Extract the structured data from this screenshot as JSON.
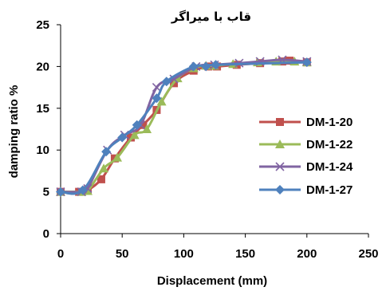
{
  "chart_data": {
    "type": "line",
    "title": "قاب با میراگر",
    "xlabel": "Displacement (mm)",
    "ylabel": "damping ratio %",
    "xlim": [
      0,
      250
    ],
    "ylim": [
      0,
      25
    ],
    "xticks": [
      "0",
      "50",
      "100",
      "150",
      "200",
      "250"
    ],
    "yticks": [
      "0",
      "5",
      "10",
      "15",
      "20",
      "25"
    ],
    "grid": false,
    "legend_position": "right",
    "series": [
      {
        "name": "DM-1-20",
        "color": "#C0504D",
        "marker": "square",
        "x": [
          0,
          15,
          22,
          33,
          44,
          57,
          67,
          78,
          92,
          108,
          120,
          127,
          143,
          162,
          180,
          186,
          200
        ],
        "y": [
          5,
          5,
          5.2,
          6.5,
          9.0,
          11.5,
          13.0,
          14.8,
          18.0,
          19.5,
          20.0,
          20.0,
          20.2,
          20.4,
          20.6,
          20.7,
          20.5
        ]
      },
      {
        "name": "DM-1-22",
        "color": "#9BBB59",
        "marker": "triangle",
        "x": [
          0,
          17,
          22,
          35,
          46,
          60,
          70,
          82,
          95,
          108,
          118,
          125,
          140,
          160,
          175,
          190,
          200
        ],
        "y": [
          5,
          5,
          5.1,
          7.8,
          9.1,
          11.8,
          12.5,
          15.8,
          18.6,
          19.8,
          20.1,
          20.1,
          20.3,
          20.5,
          20.6,
          20.6,
          20.5
        ]
      },
      {
        "name": "DM-1-24",
        "color": "#8064A2",
        "marker": "x",
        "x": [
          0,
          17,
          22,
          38,
          52,
          65,
          78,
          92,
          110,
          125,
          145,
          162,
          180,
          200
        ],
        "y": [
          5,
          5,
          5.4,
          10.0,
          11.8,
          13.0,
          17.5,
          18.5,
          20.0,
          20.2,
          20.4,
          20.6,
          20.8,
          20.6
        ]
      },
      {
        "name": "DM-1-27",
        "color": "#4F81BD",
        "marker": "diamond",
        "x": [
          0,
          18,
          37,
          50,
          62,
          78,
          86,
          108,
          118,
          126,
          200
        ],
        "y": [
          5,
          5.2,
          9.8,
          11.5,
          13.0,
          16.2,
          18.2,
          20.0,
          20.0,
          20.2,
          20.5
        ]
      }
    ]
  }
}
